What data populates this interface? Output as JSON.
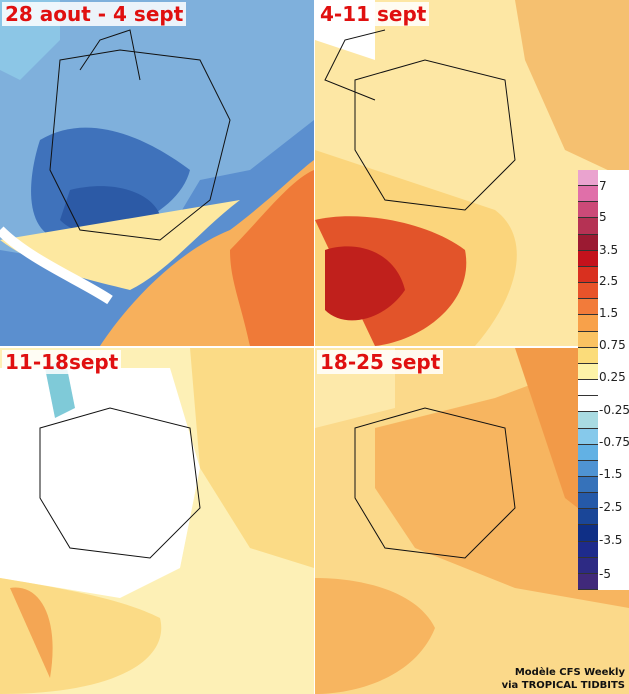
{
  "panels": [
    {
      "title": "28 aout - 4 sept",
      "palette": [
        "#5b8fcf",
        "#3f72bb",
        "#2c5aa6",
        "#8cc6e6",
        "#fde8a0",
        "#f7b05c",
        "#ef7a38"
      ]
    },
    {
      "title": "4-11 sept",
      "palette": [
        "#fde7a4",
        "#fbd57c",
        "#f5a34e",
        "#e2542a",
        "#c0201c"
      ]
    },
    {
      "title": "11-18sept",
      "palette": [
        "#ffffff",
        "#fdf0b6",
        "#fbdb86",
        "#f4a654",
        "#7fcad8"
      ]
    },
    {
      "title": "18-25 sept",
      "palette": [
        "#fbd98a",
        "#f7b560",
        "#f29a48",
        "#fde9aa"
      ]
    }
  ],
  "legend": {
    "colors": [
      "#eaa3cf",
      "#e06fa9",
      "#cc4a78",
      "#b53254",
      "#9b1a32",
      "#c4121c",
      "#d9301f",
      "#e8532a",
      "#f27b3a",
      "#f8a14a",
      "#fac262",
      "#fbdc7a",
      "#fdf3a8",
      "#ffffff",
      "#ffffff",
      "#a9dbe2",
      "#86c9eb",
      "#62b1e4",
      "#4f93d3",
      "#3672ba",
      "#2559a8",
      "#1a4698",
      "#0f2f86",
      "#1e2b8c",
      "#2d2a84",
      "#40297a"
    ],
    "labels": [
      "7",
      "5",
      "3.5",
      "2.5",
      "1.5",
      "0.75",
      "0.25",
      "-0.25",
      "-0.75",
      "-1.5",
      "-2.5",
      "-3.5",
      "-5"
    ]
  },
  "credit": {
    "line1": "Modèle CFS Weekly",
    "line2": "via TROPICAL TIDBITS"
  }
}
